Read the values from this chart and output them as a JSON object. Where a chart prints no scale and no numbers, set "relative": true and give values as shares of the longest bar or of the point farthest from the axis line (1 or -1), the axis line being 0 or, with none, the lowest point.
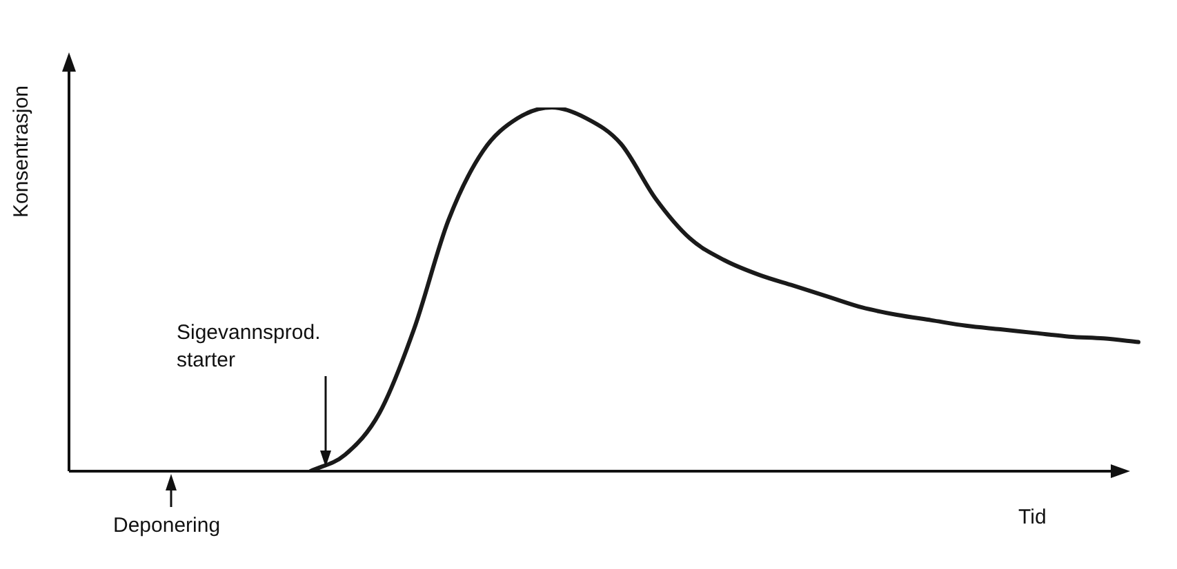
{
  "chart_data": {
    "type": "line",
    "relative": true,
    "xlabel": "Tid",
    "ylabel": "Konsentrasjon",
    "annotations": [
      "Sigevannsprod.\nstarter",
      "Deponering"
    ],
    "legend": false,
    "marker": "none",
    "line_style": "solid",
    "categories": [
      null,
      null,
      null,
      null,
      null,
      null,
      null,
      null,
      null,
      null,
      null,
      null,
      null,
      null,
      null,
      null,
      null,
      null,
      null,
      null,
      null,
      null,
      null,
      null,
      null,
      null,
      null,
      null,
      null,
      null,
      null,
      null
    ],
    "series": [
      {
        "color": "#1a1a1a",
        "values": [
          null,
          null,
          null,
          null,
          null,
          null,
          null,
          0,
          0.045,
          0.16,
          0.39,
          0.69,
          0.88,
          0.97,
          1,
          0.97,
          0.9,
          0.75,
          0.64,
          0.58,
          0.54,
          0.51,
          0.48,
          0.45,
          0.43,
          0.415,
          0.4,
          0.39,
          0.38,
          0.37,
          0.365,
          0.355
        ]
      }
    ]
  }
}
